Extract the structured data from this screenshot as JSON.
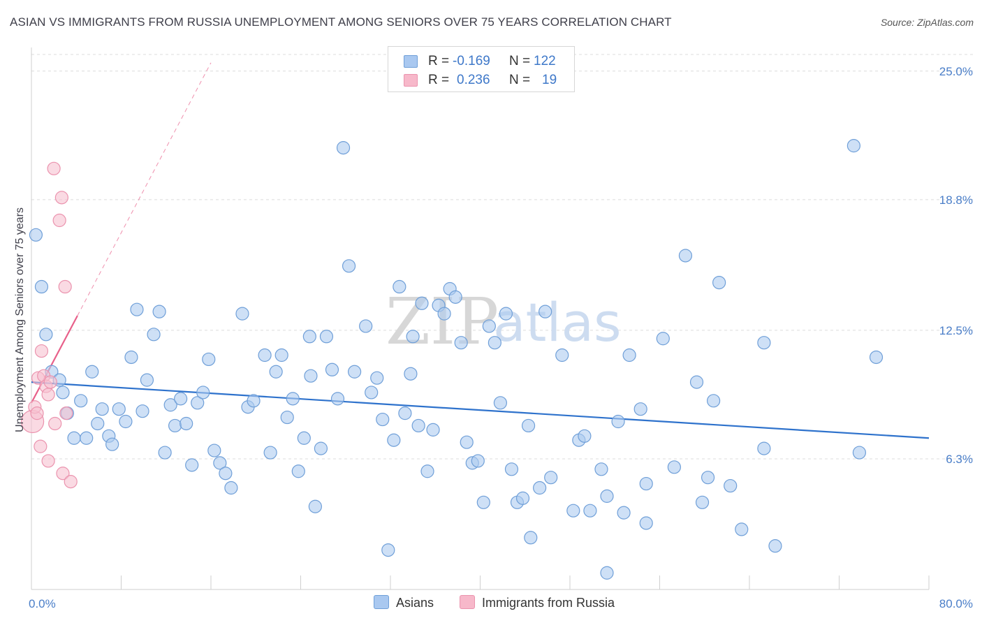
{
  "title": "ASIAN VS IMMIGRANTS FROM RUSSIA UNEMPLOYMENT AMONG SENIORS OVER 75 YEARS CORRELATION CHART",
  "source": "Source: ZipAtlas.com",
  "watermark": {
    "zip": "ZIP",
    "atlas": "atlas"
  },
  "legend": {
    "r_label": "R =",
    "n_label": "N =",
    "rows": [
      {
        "r": "-0.169",
        "n": "122",
        "color": "#a9c8f0"
      },
      {
        "r": "0.236",
        "n": "19",
        "color": "#f7b8ca"
      }
    ]
  },
  "bottom_legend": {
    "asians": "Asians",
    "russia": "Immigrants from Russia"
  },
  "colors": {
    "asian_fill": "#aecbf0",
    "asian_stroke": "#6f9fd8",
    "asian_line": "#2e72cc",
    "russia_fill": "#f7c1d1",
    "russia_stroke": "#eb93ae",
    "russia_line": "#e8608a",
    "grid": "#dcdcdc",
    "tick_text": "#4a7ec8"
  },
  "chart_data": {
    "type": "scatter",
    "title": "ASIAN VS IMMIGRANTS FROM RUSSIA UNEMPLOYMENT AMONG SENIORS OVER 75 YEARS CORRELATION CHART",
    "xlabel": "",
    "ylabel": "Unemployment Among Seniors over 75 years",
    "xlim": [
      0,
      80
    ],
    "ylim": [
      0,
      25.8
    ],
    "x_tick_labels": [
      {
        "value": 0,
        "label": "0.0%"
      },
      {
        "value": 80,
        "label": "80.0%"
      }
    ],
    "y_tick_labels": [
      {
        "value": 25.0,
        "label": "25.0%"
      },
      {
        "value": 18.8,
        "label": "18.8%"
      },
      {
        "value": 12.5,
        "label": "12.5%"
      },
      {
        "value": 6.3,
        "label": "6.3%"
      }
    ],
    "grid": true,
    "series": [
      {
        "name": "Asians",
        "r": -0.169,
        "n": 122,
        "trend": {
          "x": [
            0,
            80
          ],
          "y": [
            10.0,
            7.3
          ]
        },
        "points": [
          [
            0.4,
            17.1
          ],
          [
            0.9,
            14.6
          ],
          [
            1.3,
            12.3
          ],
          [
            1.8,
            10.5
          ],
          [
            2.5,
            10.1
          ],
          [
            2.8,
            9.5
          ],
          [
            3.2,
            8.5
          ],
          [
            3.8,
            7.3
          ],
          [
            4.4,
            9.1
          ],
          [
            4.9,
            7.3
          ],
          [
            5.4,
            10.5
          ],
          [
            5.9,
            8.0
          ],
          [
            6.3,
            8.7
          ],
          [
            6.9,
            7.4
          ],
          [
            7.2,
            7.0
          ],
          [
            7.8,
            8.7
          ],
          [
            8.4,
            8.1
          ],
          [
            8.9,
            11.2
          ],
          [
            9.4,
            13.5
          ],
          [
            9.9,
            8.6
          ],
          [
            10.3,
            10.1
          ],
          [
            10.9,
            12.3
          ],
          [
            11.4,
            13.4
          ],
          [
            11.9,
            6.6
          ],
          [
            12.4,
            8.9
          ],
          [
            12.8,
            7.9
          ],
          [
            13.3,
            9.2
          ],
          [
            13.8,
            8.0
          ],
          [
            14.3,
            6.0
          ],
          [
            14.8,
            9.0
          ],
          [
            15.3,
            9.5
          ],
          [
            15.8,
            11.1
          ],
          [
            16.3,
            6.7
          ],
          [
            16.8,
            6.1
          ],
          [
            17.3,
            5.6
          ],
          [
            17.8,
            4.9
          ],
          [
            18.8,
            13.3
          ],
          [
            19.3,
            8.8
          ],
          [
            19.8,
            9.1
          ],
          [
            20.8,
            11.3
          ],
          [
            21.3,
            6.6
          ],
          [
            21.8,
            10.5
          ],
          [
            22.3,
            11.3
          ],
          [
            22.8,
            8.3
          ],
          [
            23.3,
            9.2
          ],
          [
            23.8,
            5.7
          ],
          [
            24.3,
            7.3
          ],
          [
            24.8,
            12.2
          ],
          [
            24.9,
            10.3
          ],
          [
            25.3,
            4.0
          ],
          [
            25.8,
            6.8
          ],
          [
            26.3,
            12.2
          ],
          [
            26.8,
            10.6
          ],
          [
            27.3,
            9.2
          ],
          [
            27.8,
            21.3
          ],
          [
            28.3,
            15.6
          ],
          [
            28.8,
            10.5
          ],
          [
            29.8,
            12.7
          ],
          [
            30.3,
            9.5
          ],
          [
            30.8,
            10.2
          ],
          [
            31.3,
            8.2
          ],
          [
            31.8,
            1.9
          ],
          [
            32.3,
            7.2
          ],
          [
            32.8,
            14.6
          ],
          [
            33.3,
            8.5
          ],
          [
            33.8,
            10.4
          ],
          [
            34.0,
            12.2
          ],
          [
            34.5,
            7.9
          ],
          [
            35.3,
            5.7
          ],
          [
            35.8,
            7.7
          ],
          [
            36.3,
            13.7
          ],
          [
            36.8,
            13.3
          ],
          [
            37.3,
            14.5
          ],
          [
            37.8,
            14.1
          ],
          [
            38.3,
            11.9
          ],
          [
            38.8,
            7.1
          ],
          [
            39.3,
            6.1
          ],
          [
            39.8,
            6.2
          ],
          [
            40.3,
            4.2
          ],
          [
            40.8,
            12.7
          ],
          [
            41.3,
            11.9
          ],
          [
            41.8,
            9.0
          ],
          [
            42.3,
            13.3
          ],
          [
            42.8,
            5.8
          ],
          [
            43.3,
            4.2
          ],
          [
            43.8,
            4.4
          ],
          [
            44.3,
            7.9
          ],
          [
            44.5,
            2.5
          ],
          [
            45.3,
            4.9
          ],
          [
            45.8,
            13.4
          ],
          [
            46.3,
            5.4
          ],
          [
            47.3,
            11.3
          ],
          [
            48.3,
            3.8
          ],
          [
            48.8,
            7.2
          ],
          [
            49.3,
            7.4
          ],
          [
            49.8,
            3.8
          ],
          [
            50.8,
            5.8
          ],
          [
            51.3,
            4.5
          ],
          [
            51.3,
            0.8
          ],
          [
            52.3,
            8.1
          ],
          [
            52.8,
            3.7
          ],
          [
            53.3,
            11.3
          ],
          [
            54.3,
            8.7
          ],
          [
            54.8,
            5.1
          ],
          [
            54.8,
            3.2
          ],
          [
            56.3,
            12.1
          ],
          [
            57.3,
            5.9
          ],
          [
            58.3,
            16.1
          ],
          [
            59.3,
            10.0
          ],
          [
            59.8,
            4.2
          ],
          [
            60.3,
            5.4
          ],
          [
            60.8,
            9.1
          ],
          [
            61.3,
            14.8
          ],
          [
            62.3,
            5.0
          ],
          [
            63.3,
            2.9
          ],
          [
            65.3,
            11.9
          ],
          [
            65.3,
            6.8
          ],
          [
            66.3,
            2.1
          ],
          [
            73.3,
            21.4
          ],
          [
            73.8,
            6.6
          ],
          [
            75.3,
            11.2
          ],
          [
            34.8,
            13.8
          ]
        ]
      },
      {
        "name": "Immigrants from Russia",
        "r": 0.236,
        "n": 19,
        "trend": {
          "x": [
            0,
            4.1
          ],
          "y": [
            9.0,
            13.2
          ]
        },
        "trend_extension": {
          "x": [
            4.1,
            16.0
          ],
          "y": [
            13.2,
            25.4
          ]
        },
        "points": [
          [
            0.1,
            8.1
          ],
          [
            0.3,
            8.8
          ],
          [
            0.5,
            8.5
          ],
          [
            0.6,
            10.2
          ],
          [
            0.8,
            6.9
          ],
          [
            0.9,
            11.5
          ],
          [
            1.1,
            10.3
          ],
          [
            1.3,
            9.8
          ],
          [
            1.5,
            6.2
          ],
          [
            1.5,
            9.4
          ],
          [
            1.7,
            10.0
          ],
          [
            2.0,
            20.3
          ],
          [
            2.1,
            8.0
          ],
          [
            2.5,
            17.8
          ],
          [
            2.7,
            18.9
          ],
          [
            2.8,
            5.6
          ],
          [
            3.0,
            14.6
          ],
          [
            3.1,
            8.5
          ],
          [
            3.5,
            5.2
          ]
        ]
      }
    ]
  }
}
